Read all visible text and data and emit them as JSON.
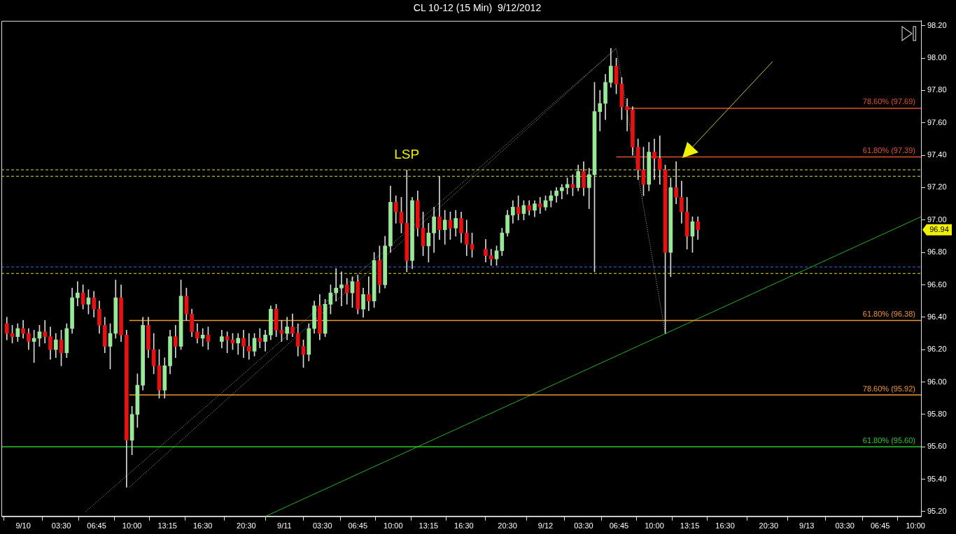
{
  "chart_data": {
    "type": "candlestick",
    "title": "CL 10-12 (15 Min)  9/12/2012",
    "x": [
      "2012-09-09T22:30",
      "2012-09-09T23:00",
      "2012-09-09T23:30",
      "2012-09-10T00:00",
      "2012-09-10T00:30",
      "2012-09-10T01:00",
      "2012-09-10T01:30",
      "2012-09-10T02:00",
      "2012-09-10T02:30",
      "2012-09-10T03:00",
      "2012-09-10T03:30",
      "2012-09-10T04:00",
      "2012-09-10T04:30",
      "2012-09-10T05:00",
      "2012-09-10T05:30",
      "2012-09-10T06:00",
      "2012-09-10T06:30",
      "2012-09-10T07:00",
      "2012-09-10T07:30",
      "2012-09-10T08:00",
      "2012-09-10T08:30",
      "2012-09-10T09:00",
      "2012-09-10T09:30",
      "2012-09-10T10:00",
      "2012-09-10T10:30",
      "2012-09-10T11:00",
      "2012-09-10T11:30",
      "2012-09-10T12:00",
      "2012-09-10T12:30",
      "2012-09-10T13:00",
      "2012-09-10T13:30",
      "2012-09-10T14:00",
      "2012-09-10T14:30",
      "2012-09-10T15:00",
      "2012-09-10T15:30",
      "2012-09-10T16:00",
      "2012-09-10T16:30",
      "2012-09-10T17:00",
      "2012-09-10T18:15",
      "2012-09-10T18:45",
      "2012-09-10T19:15",
      "2012-09-10T19:45",
      "2012-09-10T20:15",
      "2012-09-10T20:45",
      "2012-09-10T21:15",
      "2012-09-10T21:45",
      "2012-09-10T22:15",
      "2012-09-10T22:45",
      "2012-09-10T23:15",
      "2012-09-10T23:45",
      "2012-09-11T00:15",
      "2012-09-11T00:45",
      "2012-09-11T01:15",
      "2012-09-11T01:45",
      "2012-09-11T02:15",
      "2012-09-11T02:45",
      "2012-09-11T03:15",
      "2012-09-11T03:45",
      "2012-09-11T04:15",
      "2012-09-11T04:45",
      "2012-09-11T05:15",
      "2012-09-11T05:45",
      "2012-09-11T06:15",
      "2012-09-11T06:45",
      "2012-09-11T07:15",
      "2012-09-11T07:45",
      "2012-09-11T08:15",
      "2012-09-11T08:45",
      "2012-09-11T09:15",
      "2012-09-11T09:45",
      "2012-09-11T10:15",
      "2012-09-11T10:45",
      "2012-09-11T11:15",
      "2012-09-11T11:45",
      "2012-09-11T12:15",
      "2012-09-11T12:45",
      "2012-09-11T13:15",
      "2012-09-11T13:45",
      "2012-09-11T14:15",
      "2012-09-11T14:45",
      "2012-09-11T15:15",
      "2012-09-11T15:45",
      "2012-09-11T16:15",
      "2012-09-11T16:45",
      "2012-09-11T17:15",
      "2012-09-11T18:30",
      "2012-09-11T19:00",
      "2012-09-11T19:30",
      "2012-09-11T20:00",
      "2012-09-11T20:30",
      "2012-09-11T21:00",
      "2012-09-11T21:30",
      "2012-09-11T22:00",
      "2012-09-11T22:30",
      "2012-09-11T23:00",
      "2012-09-11T23:30",
      "2012-09-12T00:00",
      "2012-09-12T00:30",
      "2012-09-12T01:00",
      "2012-09-12T01:30",
      "2012-09-12T02:00",
      "2012-09-12T02:30",
      "2012-09-12T03:00",
      "2012-09-12T03:30",
      "2012-09-12T04:00",
      "2012-09-12T04:30",
      "2012-09-12T05:00",
      "2012-09-12T05:30",
      "2012-09-12T06:00",
      "2012-09-12T06:30",
      "2012-09-12T07:00",
      "2012-09-12T07:30",
      "2012-09-12T08:00",
      "2012-09-12T08:30",
      "2012-09-12T09:00",
      "2012-09-12T09:30",
      "2012-09-12T10:00",
      "2012-09-12T10:30",
      "2012-09-12T11:00",
      "2012-09-12T11:30",
      "2012-09-12T12:00",
      "2012-09-12T12:30",
      "2012-09-12T13:00",
      "2012-09-12T13:30",
      "2012-09-12T14:00"
    ],
    "ohlc": [
      [
        96.36,
        96.4,
        96.26,
        96.3
      ],
      [
        96.3,
        96.35,
        96.24,
        96.28
      ],
      [
        96.28,
        96.36,
        96.25,
        96.33
      ],
      [
        96.33,
        96.38,
        96.27,
        96.3
      ],
      [
        96.3,
        96.33,
        96.2,
        96.25
      ],
      [
        96.25,
        96.32,
        96.12,
        96.27
      ],
      [
        96.27,
        96.35,
        96.22,
        96.31
      ],
      [
        96.31,
        96.38,
        96.24,
        96.28
      ],
      [
        96.28,
        96.34,
        96.14,
        96.2
      ],
      [
        96.2,
        96.3,
        96.15,
        96.26
      ],
      [
        96.26,
        96.32,
        96.1,
        96.18
      ],
      [
        96.18,
        96.36,
        96.15,
        96.33
      ],
      [
        96.33,
        96.58,
        96.3,
        96.52
      ],
      [
        96.52,
        96.62,
        96.47,
        96.55
      ],
      [
        96.55,
        96.6,
        96.45,
        96.48
      ],
      [
        96.48,
        96.57,
        96.42,
        96.52
      ],
      [
        96.52,
        96.56,
        96.4,
        96.45
      ],
      [
        96.45,
        96.5,
        96.3,
        96.35
      ],
      [
        96.35,
        96.4,
        96.18,
        96.22
      ],
      [
        96.22,
        96.36,
        96.08,
        96.3
      ],
      [
        96.3,
        96.63,
        96.27,
        96.52
      ],
      [
        96.52,
        96.6,
        96.25,
        96.29
      ],
      [
        96.29,
        96.32,
        95.35,
        95.64
      ],
      [
        95.64,
        95.85,
        95.55,
        95.8
      ],
      [
        95.8,
        96.05,
        95.72,
        95.98
      ],
      [
        95.98,
        96.4,
        95.95,
        96.35
      ],
      [
        96.35,
        96.4,
        96.15,
        96.2
      ],
      [
        96.2,
        96.3,
        96.05,
        96.1
      ],
      [
        96.1,
        96.2,
        95.9,
        95.95
      ],
      [
        95.95,
        96.15,
        95.9,
        96.1
      ],
      [
        96.1,
        96.32,
        96.05,
        96.28
      ],
      [
        96.28,
        96.35,
        96.15,
        96.22
      ],
      [
        96.22,
        96.63,
        96.2,
        96.53
      ],
      [
        96.53,
        96.58,
        96.38,
        96.42
      ],
      [
        96.42,
        96.45,
        96.28,
        96.31
      ],
      [
        96.31,
        96.36,
        96.24,
        96.27
      ],
      [
        96.27,
        96.33,
        96.22,
        96.29
      ],
      [
        96.29,
        96.34,
        96.2,
        96.25
      ],
      [
        96.25,
        96.32,
        96.21,
        96.28
      ],
      [
        96.28,
        96.31,
        96.18,
        96.26
      ],
      [
        96.26,
        96.3,
        96.2,
        96.24
      ],
      [
        96.24,
        96.3,
        96.17,
        96.27
      ],
      [
        96.27,
        96.32,
        96.15,
        96.22
      ],
      [
        96.22,
        96.3,
        96.14,
        96.19
      ],
      [
        96.19,
        96.3,
        96.16,
        96.27
      ],
      [
        96.27,
        96.33,
        96.21,
        96.25
      ],
      [
        96.25,
        96.32,
        96.19,
        96.29
      ],
      [
        96.29,
        96.47,
        96.26,
        96.45
      ],
      [
        96.45,
        96.48,
        96.28,
        96.32
      ],
      [
        96.32,
        96.38,
        96.25,
        96.3
      ],
      [
        96.3,
        96.4,
        96.26,
        96.34
      ],
      [
        96.34,
        96.42,
        96.28,
        96.3
      ],
      [
        96.3,
        96.36,
        96.16,
        96.22
      ],
      [
        96.22,
        96.26,
        96.09,
        96.17
      ],
      [
        96.17,
        96.36,
        96.13,
        96.33
      ],
      [
        96.33,
        96.5,
        96.3,
        96.47
      ],
      [
        96.47,
        96.54,
        96.26,
        96.3
      ],
      [
        96.3,
        96.51,
        96.28,
        96.48
      ],
      [
        96.48,
        96.6,
        96.42,
        96.55
      ],
      [
        96.55,
        96.7,
        96.5,
        96.58
      ],
      [
        96.58,
        96.68,
        96.47,
        96.6
      ],
      [
        96.6,
        96.64,
        96.48,
        96.55
      ],
      [
        96.55,
        96.65,
        96.46,
        96.62
      ],
      [
        96.62,
        96.66,
        96.42,
        96.45
      ],
      [
        96.45,
        96.58,
        96.4,
        96.54
      ],
      [
        96.54,
        96.65,
        96.44,
        96.5
      ],
      [
        96.5,
        96.8,
        96.46,
        96.75
      ],
      [
        96.75,
        96.84,
        96.55,
        96.6
      ],
      [
        96.6,
        96.9,
        96.58,
        96.84
      ],
      [
        96.84,
        97.21,
        96.8,
        97.11
      ],
      [
        97.11,
        97.15,
        96.98,
        97.05
      ],
      [
        97.05,
        97.14,
        96.92,
        96.98
      ],
      [
        96.98,
        97.31,
        96.68,
        96.75
      ],
      [
        96.75,
        97.14,
        96.7,
        97.12
      ],
      [
        97.12,
        97.18,
        96.9,
        96.95
      ],
      [
        96.95,
        97.05,
        96.78,
        96.84
      ],
      [
        96.84,
        96.98,
        96.74,
        96.92
      ],
      [
        96.92,
        97.08,
        96.8,
        97.02
      ],
      [
        97.02,
        97.27,
        96.88,
        96.94
      ],
      [
        96.94,
        97.06,
        96.85,
        97.0
      ],
      [
        97.0,
        97.05,
        96.88,
        96.95
      ],
      [
        96.95,
        97.06,
        96.9,
        97.01
      ],
      [
        97.01,
        97.05,
        96.86,
        96.92
      ],
      [
        96.92,
        97.0,
        96.78,
        96.85
      ],
      [
        96.85,
        96.92,
        96.77,
        96.82
      ],
      [
        96.82,
        96.88,
        96.74,
        96.78
      ],
      [
        96.78,
        96.82,
        96.72,
        96.76
      ],
      [
        96.76,
        96.84,
        96.72,
        96.81
      ],
      [
        96.81,
        96.95,
        96.78,
        96.92
      ],
      [
        96.92,
        97.06,
        96.9,
        97.03
      ],
      [
        97.03,
        97.12,
        96.98,
        97.08
      ],
      [
        97.08,
        97.15,
        97.0,
        97.04
      ],
      [
        97.04,
        97.12,
        97.0,
        97.09
      ],
      [
        97.09,
        97.12,
        97.03,
        97.06
      ],
      [
        97.06,
        97.12,
        97.02,
        97.1
      ],
      [
        97.1,
        97.14,
        97.04,
        97.08
      ],
      [
        97.08,
        97.15,
        97.06,
        97.12
      ],
      [
        97.12,
        97.18,
        97.08,
        97.15
      ],
      [
        97.15,
        97.2,
        97.11,
        97.18
      ],
      [
        97.18,
        97.22,
        97.13,
        97.2
      ],
      [
        97.2,
        97.26,
        97.16,
        97.22
      ],
      [
        97.22,
        97.28,
        97.15,
        97.2
      ],
      [
        97.2,
        97.34,
        97.18,
        97.3
      ],
      [
        97.3,
        97.36,
        97.15,
        97.2
      ],
      [
        97.2,
        97.32,
        97.07,
        97.28
      ],
      [
        97.28,
        97.85,
        96.68,
        97.67
      ],
      [
        97.67,
        97.8,
        97.55,
        97.72
      ],
      [
        97.72,
        97.9,
        97.62,
        97.85
      ],
      [
        97.85,
        98.06,
        97.82,
        97.95
      ],
      [
        97.95,
        98.0,
        97.78,
        97.84
      ],
      [
        97.84,
        97.88,
        97.62,
        97.7
      ],
      [
        97.7,
        97.75,
        97.55,
        97.68
      ],
      [
        97.68,
        97.7,
        97.4,
        97.45
      ],
      [
        97.45,
        97.5,
        97.25,
        97.31
      ],
      [
        97.31,
        97.45,
        97.15,
        97.22
      ],
      [
        97.22,
        97.48,
        97.18,
        97.42
      ],
      [
        97.42,
        97.5,
        97.25,
        97.38
      ],
      [
        97.38,
        97.52,
        97.22,
        97.31
      ],
      [
        97.31,
        97.34,
        96.3,
        96.8
      ],
      [
        96.8,
        97.26,
        96.65,
        97.2
      ],
      [
        97.2,
        97.36,
        97.1,
        97.14
      ],
      [
        97.14,
        97.24,
        96.98,
        97.05
      ],
      [
        97.05,
        97.14,
        96.82,
        96.9
      ],
      [
        96.9,
        97.02,
        96.8,
        96.99
      ],
      [
        96.99,
        97.02,
        96.88,
        96.94
      ]
    ],
    "colors": [
      "#e81010",
      "#e81010",
      "#98e898",
      "#e81010",
      "#e81010",
      "#98e898",
      "#98e898",
      "#e81010",
      "#e81010",
      "#98e898",
      "#e81010",
      "#98e898",
      "#98e898",
      "#98e898",
      "#e81010",
      "#98e898",
      "#e81010",
      "#e81010",
      "#e81010",
      "#98e898",
      "#98e898",
      "#e81010",
      "#e81010",
      "#98e898",
      "#98e898",
      "#98e898",
      "#e81010",
      "#e81010",
      "#e81010",
      "#98e898",
      "#98e898",
      "#e81010",
      "#98e898",
      "#e81010",
      "#e81010",
      "#e81010",
      "#98e898",
      "#e81010",
      "#98e898",
      "#e81010",
      "#e81010",
      "#98e898",
      "#e81010",
      "#e81010",
      "#98e898",
      "#e81010",
      "#98e898",
      "#98e898",
      "#e81010",
      "#e81010",
      "#98e898",
      "#e81010",
      "#e81010",
      "#e81010",
      "#98e898",
      "#98e898",
      "#e81010",
      "#98e898",
      "#98e898",
      "#98e898",
      "#98e898",
      "#e81010",
      "#98e898",
      "#e81010",
      "#98e898",
      "#e81010",
      "#98e898",
      "#e81010",
      "#98e898",
      "#98e898",
      "#e81010",
      "#e81010",
      "#e81010",
      "#98e898",
      "#e81010",
      "#e81010",
      "#98e898",
      "#98e898",
      "#e81010",
      "#98e898",
      "#e81010",
      "#98e898",
      "#e81010",
      "#e81010",
      "#e81010",
      "#e81010",
      "#e81010",
      "#98e898",
      "#98e898",
      "#98e898",
      "#98e898",
      "#e81010",
      "#98e898",
      "#e81010",
      "#98e898",
      "#e81010",
      "#98e898",
      "#98e898",
      "#98e898",
      "#98e898",
      "#98e898",
      "#e81010",
      "#98e898",
      "#e81010",
      "#98e898",
      "#98e898",
      "#98e898",
      "#98e898",
      "#98e898",
      "#e81010",
      "#e81010",
      "#e81010",
      "#e81010",
      "#e81010",
      "#e81010",
      "#98e898",
      "#e81010",
      "#e81010",
      "#e81010",
      "#98e898",
      "#e81010",
      "#e81010",
      "#e81010",
      "#98e898",
      "#e81010"
    ],
    "series": [
      {
        "type": "line",
        "name": "78.60% (97.69)",
        "color": "#e0502a",
        "x": [
          "2012-09-12T07:30",
          "2012-09-13T10:30"
        ],
        "values": [
          97.69,
          97.69
        ]
      },
      {
        "type": "line",
        "name": "61.80% (97.39)",
        "color": "#e0502a",
        "x": [
          "2012-09-12T06:30",
          "2012-09-13T10:30"
        ],
        "values": [
          97.39,
          97.39
        ]
      },
      {
        "type": "line",
        "name": "61.80% (96.38)",
        "color": "#f0962a",
        "x": [
          "2012-09-10T09:45",
          "2012-09-13T10:30"
        ],
        "values": [
          96.38,
          96.38
        ]
      },
      {
        "type": "line",
        "name": "78.60% (95.92)",
        "color": "#f0962a",
        "x": [
          "2012-09-10T09:45",
          "2012-09-13T10:30"
        ],
        "values": [
          95.92,
          95.92
        ]
      },
      {
        "type": "line",
        "name": "61.80% (95.60)",
        "color": "#28c828",
        "x": [
          "2012-09-09T22:00",
          "2012-09-13T10:30"
        ],
        "values": [
          95.6,
          95.6
        ]
      },
      {
        "type": "line",
        "color": "#20b020",
        "x": [
          "2012-09-10T22:15",
          "2012-09-13T10:30"
        ],
        "values": [
          95.17,
          97.02
        ]
      },
      {
        "type": "line",
        "color": "#b0b0b0",
        "line_style": "dotted",
        "x": [
          "2012-09-10T09:45",
          "2012-09-12T06:30",
          "2012-09-12T11:00"
        ],
        "values": [
          95.35,
          98.06,
          96.3
        ]
      },
      {
        "type": "line",
        "color": "#b0b0b0",
        "line_style": "dotted",
        "x": [
          "2012-09-10T05:45",
          "2012-09-12T06:30"
        ],
        "values": [
          95.2,
          98.06
        ]
      }
    ],
    "ref_lines": [
      {
        "axis": "y",
        "value": 97.31,
        "color": "#e8e020",
        "line_style": "dashed"
      },
      {
        "axis": "y",
        "value": 97.27,
        "color": "#e8e020",
        "line_style": "dashed"
      },
      {
        "axis": "y",
        "value": 96.71,
        "color": "#3070e0",
        "line_style": "dashed"
      },
      {
        "axis": "y",
        "value": 96.67,
        "color": "#e8e020",
        "line_style": "dashed"
      }
    ],
    "annotations": [
      {
        "text": "LSP",
        "x": "2012-09-11T11:15",
        "y": 97.31
      },
      "96.94"
    ],
    "xlim": [
      "2012-09-09T22:00",
      "2012-09-13T10:30"
    ],
    "xticks": [
      {
        "value": "2012-09-10",
        "label": "9/10"
      },
      {
        "value": "2012-09-10T03:30",
        "label": "03:30"
      },
      {
        "value": "2012-09-10T06:45",
        "label": "06:45"
      },
      {
        "value": "2012-09-10T10:00",
        "label": "10:00"
      },
      {
        "value": "2012-09-10T13:15",
        "label": "13:15"
      },
      {
        "value": "2012-09-10T16:30",
        "label": "16:30"
      },
      {
        "value": "2012-09-10T20:30",
        "label": "20:30"
      },
      {
        "value": "2012-09-11",
        "label": "9/11"
      },
      {
        "value": "2012-09-11T03:30",
        "label": "03:30"
      },
      {
        "value": "2012-09-11T06:45",
        "label": "06:45"
      },
      {
        "value": "2012-09-11T10:00",
        "label": "10:00"
      },
      {
        "value": "2012-09-11T13:15",
        "label": "13:15"
      },
      {
        "value": "2012-09-11T16:30",
        "label": "16:30"
      },
      {
        "value": "2012-09-11T20:30",
        "label": "20:30"
      },
      {
        "value": "2012-09-12",
        "label": "9/12"
      },
      {
        "value": "2012-09-12T03:30",
        "label": "03:30"
      },
      {
        "value": "2012-09-12T06:45",
        "label": "06:45"
      },
      {
        "value": "2012-09-12T10:00",
        "label": "10:00"
      },
      {
        "value": "2012-09-12T13:15",
        "label": "13:15"
      },
      {
        "value": "2012-09-12T16:30",
        "label": "16:30"
      },
      {
        "value": "2012-09-12T20:30",
        "label": "20:30"
      },
      {
        "value": "2012-09-13",
        "label": "9/13"
      },
      {
        "value": "2012-09-13T03:30",
        "label": "03:30"
      },
      {
        "value": "2012-09-13T06:45",
        "label": "06:45"
      },
      {
        "value": "2012-09-13T10:00",
        "label": "10:00"
      }
    ],
    "ylim": [
      95.17,
      98.23
    ],
    "yticks": [
      {
        "value": 95.2,
        "label": "95.20"
      },
      {
        "value": 95.4,
        "label": "95.40"
      },
      {
        "value": 95.6,
        "label": "95.60"
      },
      {
        "value": 95.8,
        "label": "95.80"
      },
      {
        "value": 96,
        "label": "96.00"
      },
      {
        "value": 96.2,
        "label": "96.20"
      },
      {
        "value": 96.4,
        "label": "96.40"
      },
      {
        "value": 96.6,
        "label": "96.60"
      },
      {
        "value": 96.8,
        "label": "96.80"
      },
      {
        "value": 97,
        "label": "97.00"
      },
      {
        "value": 97.2,
        "label": "97.20"
      },
      {
        "value": 97.4,
        "label": "97.40"
      },
      {
        "value": 97.6,
        "label": "97.60"
      },
      {
        "value": 97.8,
        "label": "97.80"
      },
      {
        "value": 98,
        "label": "98.00"
      },
      {
        "value": 98.2,
        "label": "98.20"
      }
    ]
  }
}
